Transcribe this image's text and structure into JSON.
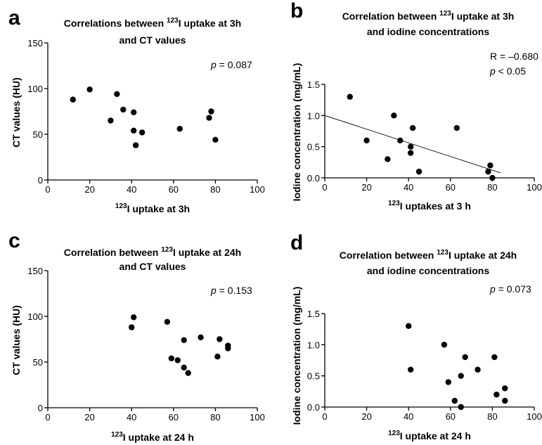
{
  "chart_data": [
    {
      "panel": "a",
      "type": "scatter",
      "title_parts": [
        "Correlations between ",
        "123",
        "I uptake at 3h"
      ],
      "title_line2": "and CT values",
      "xlabel_sup": "123",
      "xlabel": "I uptake at 3h",
      "ylabel": "CT values (HU)",
      "xlim": [
        0,
        100
      ],
      "ylim": [
        0,
        150
      ],
      "xticks": [
        "0",
        "20",
        "40",
        "60",
        "80",
        "100"
      ],
      "yticks": [
        "0",
        "50",
        "100",
        "150"
      ],
      "annotations": [
        {
          "prefix": "p",
          "text": " = 0.087"
        }
      ],
      "points": [
        [
          12,
          88
        ],
        [
          20,
          99
        ],
        [
          30,
          65
        ],
        [
          33,
          94
        ],
        [
          36,
          77
        ],
        [
          41,
          74
        ],
        [
          41,
          54
        ],
        [
          42,
          38
        ],
        [
          45,
          52
        ],
        [
          63,
          56
        ],
        [
          77,
          68
        ],
        [
          78,
          75
        ],
        [
          80,
          44
        ]
      ]
    },
    {
      "panel": "b",
      "type": "scatter",
      "title_parts": [
        "Correlation between ",
        "123",
        "I uptake at 3h"
      ],
      "title_line2": "and iodine concentrations",
      "xlabel_sup": "123",
      "xlabel": "I uptakes at 3 h",
      "ylabel": "Iodine concentration (mg/mL)",
      "xlim": [
        0,
        100
      ],
      "ylim": [
        0,
        1.5
      ],
      "xticks": [
        "0",
        "20",
        "40",
        "60",
        "80",
        "100"
      ],
      "yticks": [
        "0.0",
        "0.5",
        "1.0",
        "1.5"
      ],
      "annotations": [
        {
          "prefix": "",
          "text": "R = –0.680"
        },
        {
          "prefix": "p",
          "text": " < 0.05"
        }
      ],
      "regression_line": [
        [
          0,
          1.0
        ],
        [
          84,
          0.08
        ]
      ],
      "points": [
        [
          12,
          1.3
        ],
        [
          20,
          0.6
        ],
        [
          30,
          0.3
        ],
        [
          33,
          1.0
        ],
        [
          36,
          0.6
        ],
        [
          41,
          0.5
        ],
        [
          41,
          0.4
        ],
        [
          42,
          0.8
        ],
        [
          45,
          0.1
        ],
        [
          63,
          0.8
        ],
        [
          78,
          0.1
        ],
        [
          79,
          0.2
        ],
        [
          80,
          0.0
        ]
      ]
    },
    {
      "panel": "c",
      "type": "scatter",
      "title_parts": [
        "Correlation between ",
        "123",
        "I uptake at 24h"
      ],
      "title_line2": "and CT values",
      "xlabel_sup": "123",
      "xlabel": "I uptake at 24 h",
      "ylabel": "CT values (HU)",
      "xlim": [
        0,
        100
      ],
      "ylim": [
        0,
        150
      ],
      "xticks": [
        "0",
        "20",
        "40",
        "60",
        "80",
        "100"
      ],
      "yticks": [
        "0",
        "50",
        "100",
        "150"
      ],
      "annotations": [
        {
          "prefix": "p",
          "text": " = 0.153"
        }
      ],
      "points": [
        [
          40,
          88
        ],
        [
          41,
          99
        ],
        [
          57,
          94
        ],
        [
          59,
          54
        ],
        [
          62,
          52
        ],
        [
          65,
          74
        ],
        [
          65,
          44
        ],
        [
          67,
          38
        ],
        [
          73,
          77
        ],
        [
          81,
          56
        ],
        [
          82,
          75
        ],
        [
          86,
          65
        ],
        [
          86,
          68
        ]
      ]
    },
    {
      "panel": "d",
      "type": "scatter",
      "title_parts": [
        "Correlation between ",
        "123",
        "I uptake at 24h"
      ],
      "title_line2": "and iodine concentrations",
      "xlabel_sup": "123",
      "xlabel": "I uptake at 24 h",
      "ylabel": "Iodine concentration (mg/mL)",
      "xlim": [
        0,
        100
      ],
      "ylim": [
        0,
        1.5
      ],
      "xticks": [
        "0",
        "20",
        "40",
        "60",
        "80",
        "100"
      ],
      "yticks": [
        "0.0",
        "0.5",
        "1.0",
        "1.5"
      ],
      "annotations": [
        {
          "prefix": "p",
          "text": " = 0.073"
        }
      ],
      "points": [
        [
          40,
          1.3
        ],
        [
          41,
          0.6
        ],
        [
          57,
          1.0
        ],
        [
          59,
          0.4
        ],
        [
          62,
          0.1
        ],
        [
          65,
          0.5
        ],
        [
          65,
          0.0
        ],
        [
          67,
          0.8
        ],
        [
          73,
          0.6
        ],
        [
          81,
          0.8
        ],
        [
          82,
          0.2
        ],
        [
          86,
          0.3
        ],
        [
          86,
          0.1
        ]
      ]
    }
  ]
}
